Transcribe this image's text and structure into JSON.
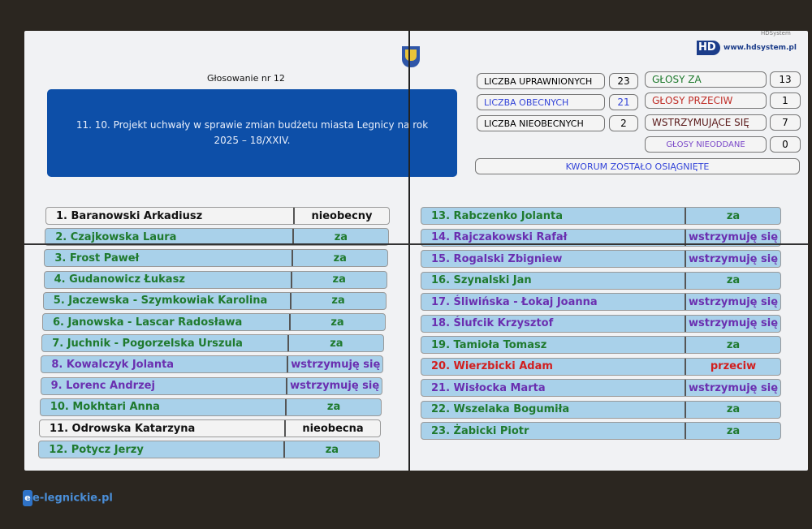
{
  "header": {
    "vendor": "HDSystem",
    "url": "www.hdsystem.pl",
    "vote_number": "Głosowanie nr 12",
    "topic": "11. 10. Projekt uchwały w sprawie zmian budżetu miasta Legnicy na rok 2025 – 18/XXIV."
  },
  "stats": {
    "eligible": {
      "label": "LICZBA UPRAWNIONYCH",
      "value": "23"
    },
    "present": {
      "label": "LICZBA OBECNYCH",
      "value": "21"
    },
    "absent": {
      "label": "LICZBA NIEOBECNYCH",
      "value": "2"
    },
    "for": {
      "label": "GŁOSY ZA",
      "value": "13"
    },
    "against": {
      "label": "GŁOSY PRZECIW",
      "value": "1"
    },
    "abstain": {
      "label": "WSTRZYMUJĄCE SIĘ",
      "value": "7"
    },
    "not_cast": {
      "label": "GŁOSY NIEODDANE",
      "value": "0"
    },
    "quorum": "KWORUM ZOSTAŁO OSIĄGNIĘTE"
  },
  "colors": {
    "za": "#1f7a2e",
    "wstrzymuje": "#6a2fb0",
    "przeciw": "#d11f1f",
    "absent": "#111111",
    "present_bg": "#a9d1ea",
    "topic_bg": "#0d4fa8"
  },
  "councillors": [
    {
      "name": "1. Baranowski Arkadiusz",
      "vote": "nieobecny",
      "type": "absent"
    },
    {
      "name": "2. Czajkowska Laura",
      "vote": "za",
      "type": "za"
    },
    {
      "name": "3. Frost Paweł",
      "vote": "za",
      "type": "za"
    },
    {
      "name": "4. Gudanowicz Łukasz",
      "vote": "za",
      "type": "za"
    },
    {
      "name": "5. Jaczewska - Szymkowiak Karolina",
      "vote": "za",
      "type": "za"
    },
    {
      "name": "6. Janowska - Lascar Radosława",
      "vote": "za",
      "type": "za"
    },
    {
      "name": "7. Juchnik - Pogorzelska Urszula",
      "vote": "za",
      "type": "za"
    },
    {
      "name": "8. Kowalczyk Jolanta",
      "vote": "wstrzymuję się",
      "type": "wstrzymuje"
    },
    {
      "name": "9. Lorenc Andrzej",
      "vote": "wstrzymuję się",
      "type": "wstrzymuje"
    },
    {
      "name": "10. Mokhtari Anna",
      "vote": "za",
      "type": "za"
    },
    {
      "name": "11. Odrowska Katarzyna",
      "vote": "nieobecna",
      "type": "absent"
    },
    {
      "name": "12. Potycz Jerzy",
      "vote": "za",
      "type": "za"
    },
    {
      "name": "13. Rabczenko Jolanta",
      "vote": "za",
      "type": "za"
    },
    {
      "name": "14. Rajczakowski Rafał",
      "vote": "wstrzymuję się",
      "type": "wstrzymuje"
    },
    {
      "name": "15. Rogalski Zbigniew",
      "vote": "wstrzymuję się",
      "type": "wstrzymuje"
    },
    {
      "name": "16. Szynalski Jan",
      "vote": "za",
      "type": "za"
    },
    {
      "name": "17. Śliwińska - Łokaj Joanna",
      "vote": "wstrzymuję się",
      "type": "wstrzymuje"
    },
    {
      "name": "18. Ślufcik Krzysztof",
      "vote": "wstrzymuję się",
      "type": "wstrzymuje"
    },
    {
      "name": "19. Tamioła Tomasz",
      "vote": "za",
      "type": "za"
    },
    {
      "name": "20. Wierzbicki Adam",
      "vote": "przeciw",
      "type": "przeciw"
    },
    {
      "name": "21. Wisłocka Marta",
      "vote": "wstrzymuję się",
      "type": "wstrzymuje"
    },
    {
      "name": "22. Wszelaka Bogumiła",
      "vote": "za",
      "type": "za"
    },
    {
      "name": "23. Żabicki Piotr",
      "vote": "za",
      "type": "za"
    }
  ],
  "watermark": "e-legnickie.pl"
}
